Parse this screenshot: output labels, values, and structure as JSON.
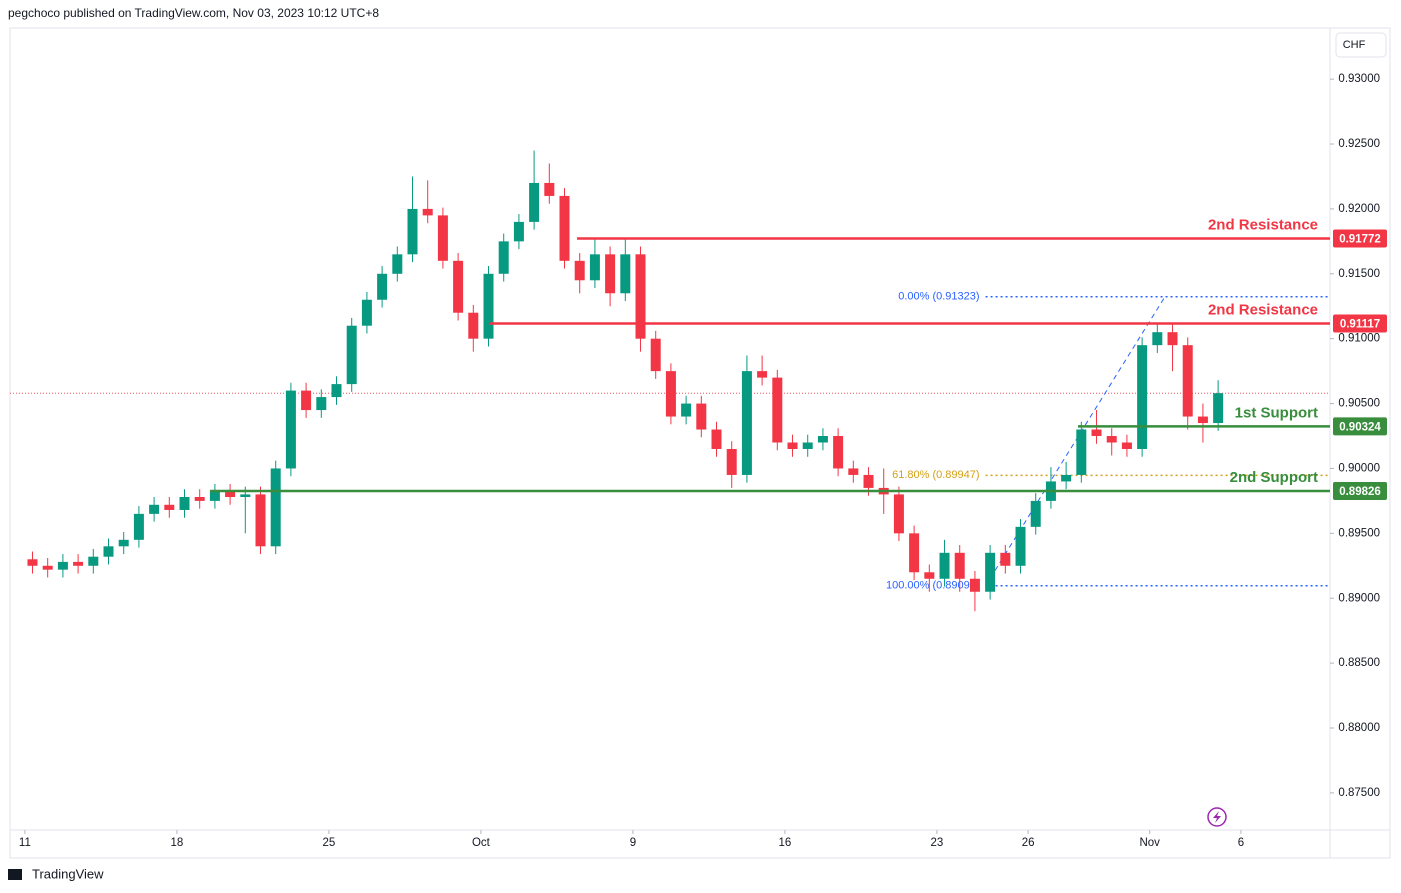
{
  "header": "pegchoco published on TradingView.com, Nov 03, 2023 10:12 UTC+8",
  "currency": "CHF",
  "footer": "TradingView",
  "chart_data": {
    "type": "candlestick",
    "up_color": "#089981",
    "down_color": "#f23645",
    "x": [
      0.25,
      0.75,
      1.25,
      1.75,
      2.25,
      2.75,
      3.25,
      3.75,
      4.25,
      4.75,
      5.25,
      5.75,
      6.25,
      6.75,
      7.25,
      7.75,
      8.25,
      8.75,
      9.25,
      9.75,
      10.25,
      10.75,
      11.25,
      11.75,
      12.25,
      12.75,
      13.25,
      13.75,
      14.25,
      14.75,
      15.25,
      15.75,
      16.25,
      16.75,
      17.25,
      17.75,
      18.25,
      18.75,
      19.25,
      19.75,
      20.25,
      20.75,
      21.25,
      21.75,
      22.25,
      22.75,
      23.25,
      23.75,
      24.25,
      24.75,
      25.25,
      25.75,
      26.25,
      26.75,
      27.25,
      27.75,
      28.25,
      28.75,
      29.25,
      29.75,
      30.25,
      30.75,
      31.25,
      31.75,
      32.25,
      32.75,
      33.25,
      33.75,
      34.25,
      34.75,
      35.25,
      35.75,
      36.25,
      36.75,
      37.25,
      37.75,
      38.25,
      38.75,
      39.25
    ],
    "open": [
      0.893,
      0.8925,
      0.8922,
      0.8928,
      0.8925,
      0.8932,
      0.894,
      0.8945,
      0.8965,
      0.8972,
      0.8968,
      0.8978,
      0.8975,
      0.8982,
      0.8978,
      0.898,
      0.894,
      0.9,
      0.906,
      0.9045,
      0.9055,
      0.9065,
      0.911,
      0.913,
      0.915,
      0.9165,
      0.92,
      0.9195,
      0.916,
      0.912,
      0.91,
      0.915,
      0.9175,
      0.919,
      0.922,
      0.921,
      0.916,
      0.9145,
      0.9165,
      0.9135,
      0.9165,
      0.91,
      0.9075,
      0.904,
      0.905,
      0.903,
      0.9015,
      0.8995,
      0.9075,
      0.907,
      0.902,
      0.9015,
      0.902,
      0.9025,
      0.9,
      0.8995,
      0.8985,
      0.898,
      0.895,
      0.892,
      0.8915,
      0.8935,
      0.8915,
      0.8905,
      0.8935,
      0.8925,
      0.8955,
      0.8975,
      0.899,
      0.8995,
      0.903,
      0.9025,
      0.902,
      0.9015,
      0.9095,
      0.9105,
      0.9095,
      0.904,
      0.9035
    ],
    "high": [
      0.8936,
      0.8931,
      0.8934,
      0.8934,
      0.8938,
      0.8946,
      0.8951,
      0.8971,
      0.8978,
      0.8978,
      0.8984,
      0.8984,
      0.8988,
      0.8988,
      0.8986,
      0.8986,
      0.9006,
      0.9066,
      0.9066,
      0.9061,
      0.9071,
      0.9116,
      0.9136,
      0.9156,
      0.9171,
      0.9225,
      0.9222,
      0.9201,
      0.9166,
      0.9126,
      0.9156,
      0.9181,
      0.9196,
      0.9245,
      0.9235,
      0.9216,
      0.9166,
      0.9177,
      0.9171,
      0.9177,
      0.9171,
      0.9106,
      0.9081,
      0.9056,
      0.9056,
      0.9036,
      0.9021,
      0.9087,
      0.9087,
      0.9076,
      0.9026,
      0.9026,
      0.9031,
      0.9031,
      0.9006,
      0.9001,
      0.9,
      0.8986,
      0.8956,
      0.8926,
      0.8945,
      0.8941,
      0.8921,
      0.8941,
      0.8941,
      0.8961,
      0.8981,
      0.9001,
      0.9005,
      0.9036,
      0.9045,
      0.9031,
      0.9026,
      0.9101,
      0.9111,
      0.9111,
      0.9101,
      0.905,
      0.9068
    ],
    "low": [
      0.8919,
      0.8916,
      0.8916,
      0.8919,
      0.8919,
      0.8926,
      0.8934,
      0.8939,
      0.8959,
      0.8962,
      0.8962,
      0.8969,
      0.8969,
      0.8972,
      0.895,
      0.8934,
      0.8934,
      0.8994,
      0.9039,
      0.9039,
      0.9049,
      0.9059,
      0.9104,
      0.9124,
      0.9144,
      0.9159,
      0.9189,
      0.9154,
      0.9114,
      0.909,
      0.9094,
      0.9144,
      0.9169,
      0.9184,
      0.9204,
      0.9154,
      0.9135,
      0.9139,
      0.9125,
      0.9129,
      0.909,
      0.9069,
      0.9034,
      0.9034,
      0.9024,
      0.9009,
      0.8985,
      0.8989,
      0.9064,
      0.9014,
      0.9009,
      0.9009,
      0.9014,
      0.8994,
      0.8989,
      0.8979,
      0.8965,
      0.8944,
      0.8914,
      0.8905,
      0.8909,
      0.8905,
      0.889,
      0.8899,
      0.8919,
      0.8919,
      0.8949,
      0.8969,
      0.8984,
      0.8989,
      0.9019,
      0.901,
      0.9009,
      0.9009,
      0.9089,
      0.9075,
      0.903,
      0.902,
      0.9029
    ],
    "close": [
      0.8925,
      0.8922,
      0.8928,
      0.8925,
      0.8932,
      0.894,
      0.8945,
      0.8965,
      0.8972,
      0.8968,
      0.8978,
      0.8975,
      0.8982,
      0.8978,
      0.898,
      0.894,
      0.9,
      0.906,
      0.9045,
      0.9055,
      0.9065,
      0.911,
      0.913,
      0.915,
      0.9165,
      0.92,
      0.9195,
      0.916,
      0.912,
      0.91,
      0.915,
      0.9175,
      0.919,
      0.922,
      0.921,
      0.916,
      0.9145,
      0.9165,
      0.9135,
      0.9165,
      0.91,
      0.9075,
      0.904,
      0.905,
      0.903,
      0.9015,
      0.8995,
      0.9075,
      0.907,
      0.902,
      0.9015,
      0.902,
      0.9025,
      0.9,
      0.8995,
      0.8985,
      0.898,
      0.895,
      0.892,
      0.8915,
      0.8935,
      0.8915,
      0.8905,
      0.8935,
      0.8925,
      0.8955,
      0.8975,
      0.899,
      0.8995,
      0.903,
      0.9025,
      0.902,
      0.9015,
      0.9095,
      0.9105,
      0.9095,
      0.904,
      0.9035,
      0.9058
    ],
    "xlim": [
      -0.49,
      42.93
    ],
    "xticks": [
      {
        "value": 0,
        "label": "11"
      },
      {
        "value": 5,
        "label": "18"
      },
      {
        "value": 10,
        "label": "25"
      },
      {
        "value": 15,
        "label": "Oct"
      },
      {
        "value": 20,
        "label": "9"
      },
      {
        "value": 25,
        "label": "16"
      },
      {
        "value": 30,
        "label": "23"
      },
      {
        "value": 33,
        "label": "26"
      },
      {
        "value": 37,
        "label": "Nov"
      },
      {
        "value": 40,
        "label": "6"
      }
    ],
    "ylim": [
      0.87214,
      0.93394
    ],
    "yticks": [
      {
        "value": 0.93,
        "label": "0.93000"
      },
      {
        "value": 0.925,
        "label": "0.92500"
      },
      {
        "value": 0.92,
        "label": "0.92000"
      },
      {
        "value": 0.915,
        "label": "0.91500"
      },
      {
        "value": 0.91,
        "label": "0.91000"
      },
      {
        "value": 0.905,
        "label": "0.90500"
      },
      {
        "value": 0.9,
        "label": "0.90000"
      },
      {
        "value": 0.895,
        "label": "0.89500"
      },
      {
        "value": 0.89,
        "label": "0.89000"
      },
      {
        "value": 0.885,
        "label": "0.88500"
      },
      {
        "value": 0.88,
        "label": "0.88000"
      },
      {
        "value": 0.875,
        "label": "0.87500"
      }
    ],
    "levels": [
      {
        "label": "2nd Resistance",
        "value": 0.91772,
        "color": "#f23645",
        "start": 18.16
      },
      {
        "label": "2nd Resistance",
        "value": 0.91117,
        "color": "#f23645",
        "start": 15.3
      },
      {
        "label": "1st Support",
        "value": 0.90324,
        "color": "#388e3c",
        "start": 34.64
      },
      {
        "label": "2nd Support",
        "value": 0.89826,
        "color": "#388e3c",
        "start": 6.09
      }
    ],
    "fib": [
      {
        "label": "0.00% (0.91323)",
        "value": 0.91323,
        "color": "#2962ff",
        "start": 31.6
      },
      {
        "label": "61.80% (0.89947)",
        "value": 0.89947,
        "color": "#d4a017",
        "start": 31.6
      },
      {
        "label": "100.00% (0.89096)",
        "value": 0.89096,
        "color": "#2962ff",
        "start": 31.6
      }
    ],
    "trend_line": {
      "x": [
        31.6,
        37.5
      ],
      "y": [
        0.89096,
        0.91323
      ],
      "color": "#2962ff"
    }
  }
}
